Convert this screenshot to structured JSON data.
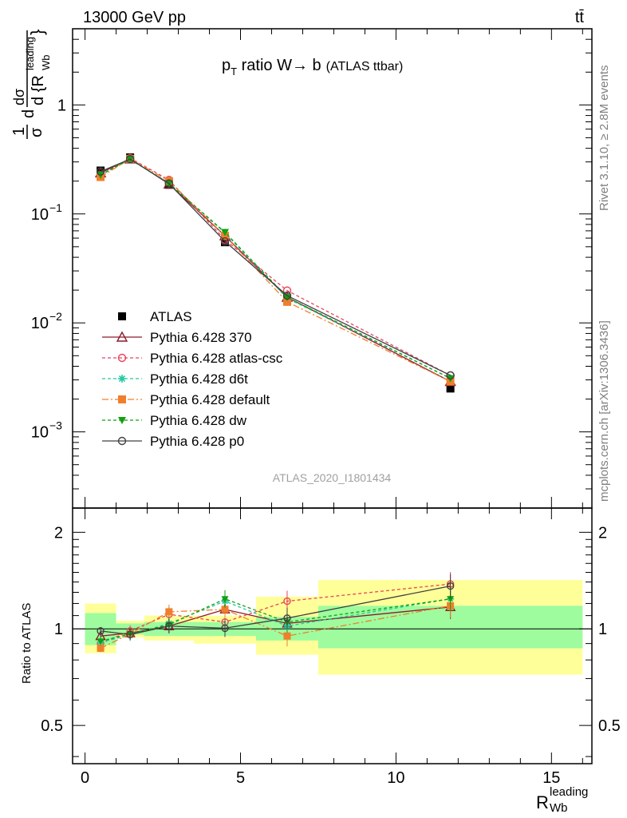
{
  "header": {
    "left": "13000 GeV pp",
    "right": "tt̄"
  },
  "side_text": {
    "rivet": "Rivet 3.1.10, ≥ 2.8M events",
    "mcplots": "mcplots.cern.ch [arXiv:1306.3436]"
  },
  "chart_data": [
    {
      "type": "scatter",
      "panel": "main",
      "title_main": "p",
      "title_sub": "T",
      "title_rest": " ratio W→ b",
      "title_small": "(ATLAS ttbar)",
      "ylabel": "1/σ dσ/d{R_Wb^leading}",
      "ylabel_parts": {
        "frac1_num": "1",
        "frac1_den": "σ",
        "frac2_num": "dσ",
        "frac2_den": "d {R",
        "sub": "Wb",
        "sup": "leading"
      },
      "yscale": "log",
      "ylim": [
        0.0002,
        5
      ],
      "xlim": [
        -0.4,
        16.3
      ],
      "yticks": [
        {
          "value": 1,
          "label": "1"
        },
        {
          "value": 0.1,
          "label": "10",
          "exp": "−1"
        },
        {
          "value": 0.01,
          "label": "10",
          "exp": "−2"
        },
        {
          "value": 0.001,
          "label": "10",
          "exp": "−3"
        }
      ],
      "watermark": "ATLAS_2020_I1801434",
      "legend_position": "bottom-left",
      "x": [
        0.5,
        1.45,
        2.7,
        4.5,
        6.5,
        11.75
      ],
      "series": [
        {
          "name": "ATLAS",
          "color": "#000000",
          "marker": "square-filled",
          "dash": "none",
          "line": false,
          "values": [
            0.25,
            0.33,
            0.185,
            0.055,
            0.0165,
            0.0025
          ]
        },
        {
          "name": "Pythia 6.428 370",
          "color": "#8b1a2b",
          "marker": "triangle-open",
          "dash": "solid",
          "line": true,
          "values": [
            0.238,
            0.32,
            0.188,
            0.063,
            0.0172,
            0.0029
          ]
        },
        {
          "name": "Pythia 6.428 atlas-csc",
          "color": "#e8445e",
          "marker": "circle-open",
          "dash": "4,3",
          "line": true,
          "values": [
            0.225,
            0.325,
            0.205,
            0.058,
            0.0198,
            0.0033
          ]
        },
        {
          "name": "Pythia 6.428 d6t",
          "color": "#22c9a0",
          "marker": "star",
          "dash": "4,3",
          "line": true,
          "values": [
            0.228,
            0.315,
            0.192,
            0.067,
            0.0168,
            0.0031
          ]
        },
        {
          "name": "Pythia 6.428 default",
          "color": "#f07f2b",
          "marker": "square-filled",
          "dash": "8,3,2,3",
          "line": true,
          "values": [
            0.218,
            0.32,
            0.2,
            0.063,
            0.0156,
            0.0029
          ]
        },
        {
          "name": "Pythia 6.428 dw",
          "color": "#10a010",
          "marker": "triangle-down-filled",
          "dash": "4,3",
          "line": true,
          "values": [
            0.229,
            0.318,
            0.19,
            0.068,
            0.0172,
            0.0031
          ]
        },
        {
          "name": "Pythia 6.428 p0",
          "color": "#404040",
          "marker": "circle-open",
          "dash": "solid",
          "line": true,
          "values": [
            0.245,
            0.318,
            0.19,
            0.056,
            0.0178,
            0.0033
          ]
        }
      ]
    },
    {
      "type": "scatter",
      "panel": "ratio",
      "ylabel": "Ratio to ATLAS",
      "ylim": [
        0.38,
        2.38
      ],
      "yscale": "log",
      "yticks": [
        {
          "value": 0.5,
          "label": "0.5"
        },
        {
          "value": 1,
          "label": "1"
        },
        {
          "value": 2,
          "label": "2"
        }
      ],
      "xlabel_main": "R",
      "xlabel_sub": "Wb",
      "xlabel_sup": "leading",
      "xticks": [
        {
          "value": 0,
          "label": "0"
        },
        {
          "value": 5,
          "label": "5"
        },
        {
          "value": 10,
          "label": "10"
        },
        {
          "value": 15,
          "label": "15"
        }
      ],
      "bins": [
        [
          0,
          1
        ],
        [
          1,
          1.9
        ],
        [
          1.9,
          3.5
        ],
        [
          3.5,
          5.5
        ],
        [
          5.5,
          7.5
        ],
        [
          7.5,
          16
        ]
      ],
      "band_inner": [
        [
          0.89,
          1.12
        ],
        [
          0.96,
          1.04
        ],
        [
          0.95,
          1.05
        ],
        [
          0.95,
          1.05
        ],
        [
          0.92,
          1.09
        ],
        [
          0.87,
          1.18
        ]
      ],
      "band_outer": [
        [
          0.84,
          1.2
        ],
        [
          0.94,
          1.06
        ],
        [
          0.92,
          1.1
        ],
        [
          0.9,
          1.1
        ],
        [
          0.83,
          1.26
        ],
        [
          0.72,
          1.42
        ]
      ],
      "band_colors": {
        "inner": "#9efc9e",
        "outer": "#ffff99"
      },
      "series": [
        {
          "name": "Pythia 6.428 370",
          "values": [
            0.95,
            0.97,
            1.02,
            1.15,
            1.04,
            1.17
          ]
        },
        {
          "name": "Pythia 6.428 atlas-csc",
          "values": [
            0.9,
            0.985,
            1.11,
            1.05,
            1.22,
            1.38
          ]
        },
        {
          "name": "Pythia 6.428 d6t",
          "values": [
            0.91,
            0.955,
            1.04,
            1.22,
            1.02,
            1.24
          ]
        },
        {
          "name": "Pythia 6.428 default",
          "values": [
            0.87,
            0.965,
            1.13,
            1.15,
            0.95,
            1.18
          ]
        },
        {
          "name": "Pythia 6.428 dw",
          "values": [
            0.915,
            0.965,
            1.03,
            1.24,
            1.05,
            1.24
          ]
        },
        {
          "name": "Pythia 6.428 p0",
          "values": [
            0.985,
            0.96,
            1.02,
            1.005,
            1.08,
            1.36
          ]
        }
      ]
    }
  ]
}
